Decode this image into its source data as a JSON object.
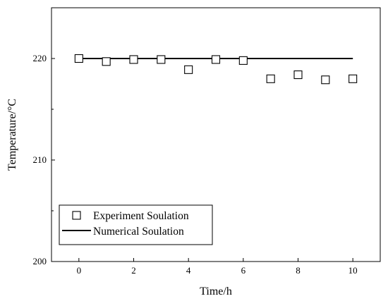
{
  "chart_data": {
    "type": "scatter",
    "xlabel": "Time/h",
    "ylabel": "Temperature/°C",
    "xlim": [
      -1,
      11
    ],
    "ylim": [
      200,
      225
    ],
    "x_ticks": [
      0,
      2,
      4,
      6,
      8,
      10
    ],
    "y_ticks": [
      200,
      210,
      220
    ],
    "grid": false,
    "legend_position": "bottom-left",
    "series": [
      {
        "name": "Experiment Soulation",
        "marker": "open-square",
        "x": [
          0,
          1,
          2,
          3,
          4,
          5,
          6,
          7,
          8,
          9,
          10
        ],
        "y": [
          220.0,
          219.7,
          219.9,
          219.9,
          218.9,
          219.9,
          219.8,
          218.0,
          218.4,
          217.9,
          218.0
        ]
      },
      {
        "name": "Numerical Soulation",
        "marker": "line",
        "x": [
          0,
          10
        ],
        "y": [
          220.0,
          220.0
        ]
      }
    ]
  }
}
